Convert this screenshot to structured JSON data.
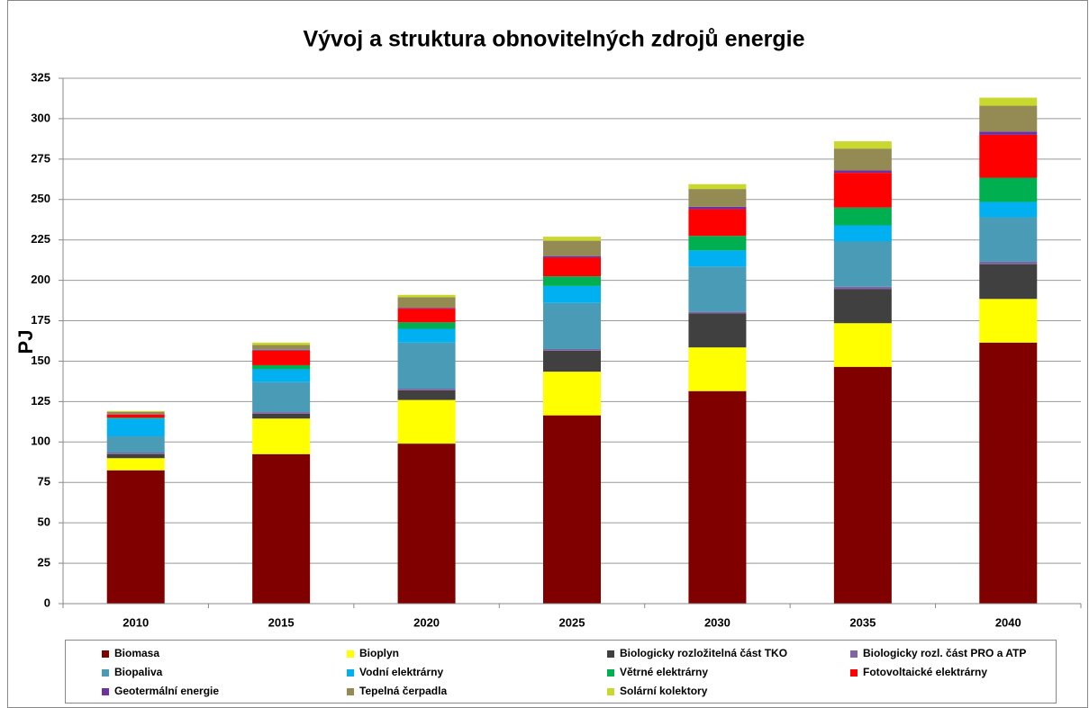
{
  "chart_data": {
    "type": "stacked_bar",
    "title": "Vývoj  a struktura obnovitelných zdrojů energie",
    "y_label": "PJ",
    "categories": [
      "2010",
      "2015",
      "2020",
      "2025",
      "2030",
      "2035",
      "2040"
    ],
    "series": [
      {
        "name": "Biomasa",
        "color": "#800000",
        "values": [
          82.5,
          92.5,
          99,
          116.5,
          131.5,
          146.5,
          161.5
        ]
      },
      {
        "name": "Bioplyn",
        "color": "#ffff00",
        "values": [
          7.5,
          22,
          27,
          27,
          27,
          27,
          27
        ]
      },
      {
        "name": "Biologicky rozložitelná část TKO",
        "color": "#404040",
        "values": [
          2.5,
          3,
          6,
          13,
          21,
          21,
          21.5
        ]
      },
      {
        "name": "Biologicky rozl. část PRO a ATP",
        "color": "#8064a2",
        "values": [
          1,
          1,
          1,
          1,
          1,
          1.5,
          1.5
        ]
      },
      {
        "name": "Biopaliva",
        "color": "#4a9bb5",
        "values": [
          10,
          18.5,
          28.5,
          28.5,
          28,
          28,
          27.5
        ]
      },
      {
        "name": "Vodní elektrárny",
        "color": "#00b0f0",
        "values": [
          11,
          8,
          8.5,
          10.5,
          10,
          10,
          9.5
        ]
      },
      {
        "name": "Větrné elektrárny",
        "color": "#00b050",
        "values": [
          0.5,
          2.5,
          4,
          6,
          9,
          11,
          15
        ]
      },
      {
        "name": "Fotovoltaické elektrárny",
        "color": "#ff0000",
        "values": [
          2,
          9,
          8.5,
          11.5,
          16.5,
          21.5,
          26.5
        ]
      },
      {
        "name": "Geotermální energie",
        "color": "#7030a0",
        "values": [
          0.2,
          0.5,
          0.5,
          1,
          1.5,
          1.5,
          2
        ]
      },
      {
        "name": "Tepelná čerpadla",
        "color": "#948a54",
        "values": [
          1.5,
          3,
          6.5,
          9.5,
          11,
          13.5,
          16
        ]
      },
      {
        "name": "Solární kolektory",
        "color": "#c8d82c",
        "values": [
          0.5,
          1.5,
          1.5,
          2.5,
          3,
          4.5,
          5
        ]
      }
    ],
    "ylim": [
      0,
      325
    ],
    "yticks": [
      0,
      25,
      50,
      75,
      100,
      125,
      150,
      175,
      200,
      225,
      250,
      275,
      300,
      325
    ],
    "grid": true,
    "legend": "bottom"
  }
}
